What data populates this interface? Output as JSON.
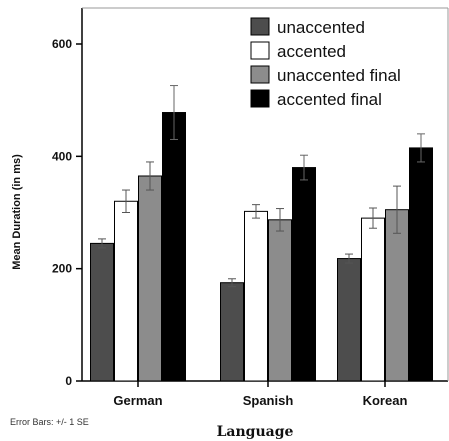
{
  "chart_data": {
    "type": "bar",
    "categories": [
      "German",
      "Spanish",
      "Korean"
    ],
    "series": [
      {
        "name": "unaccented",
        "values": [
          245,
          175,
          218
        ],
        "errors": [
          8,
          7,
          8
        ],
        "color": "#4d4d4d"
      },
      {
        "name": "accented",
        "values": [
          320,
          302,
          290
        ],
        "errors": [
          20,
          12,
          18
        ],
        "color": "#ffffff"
      },
      {
        "name": "unaccented final",
        "values": [
          365,
          287,
          305
        ],
        "errors": [
          25,
          20,
          42
        ],
        "color": "#8c8c8c"
      },
      {
        "name": "accented final",
        "values": [
          478,
          380,
          415
        ],
        "errors": [
          48,
          22,
          25
        ],
        "color": "#000000"
      }
    ],
    "ylabel": "Mean Duration (in ms)",
    "xlabel": "Language",
    "ylim": [
      0,
      600
    ],
    "yticks": [
      0,
      200,
      400,
      600
    ],
    "legend_position": "top-right",
    "note": "Error Bars: +/- 1 SE",
    "grid": false
  }
}
